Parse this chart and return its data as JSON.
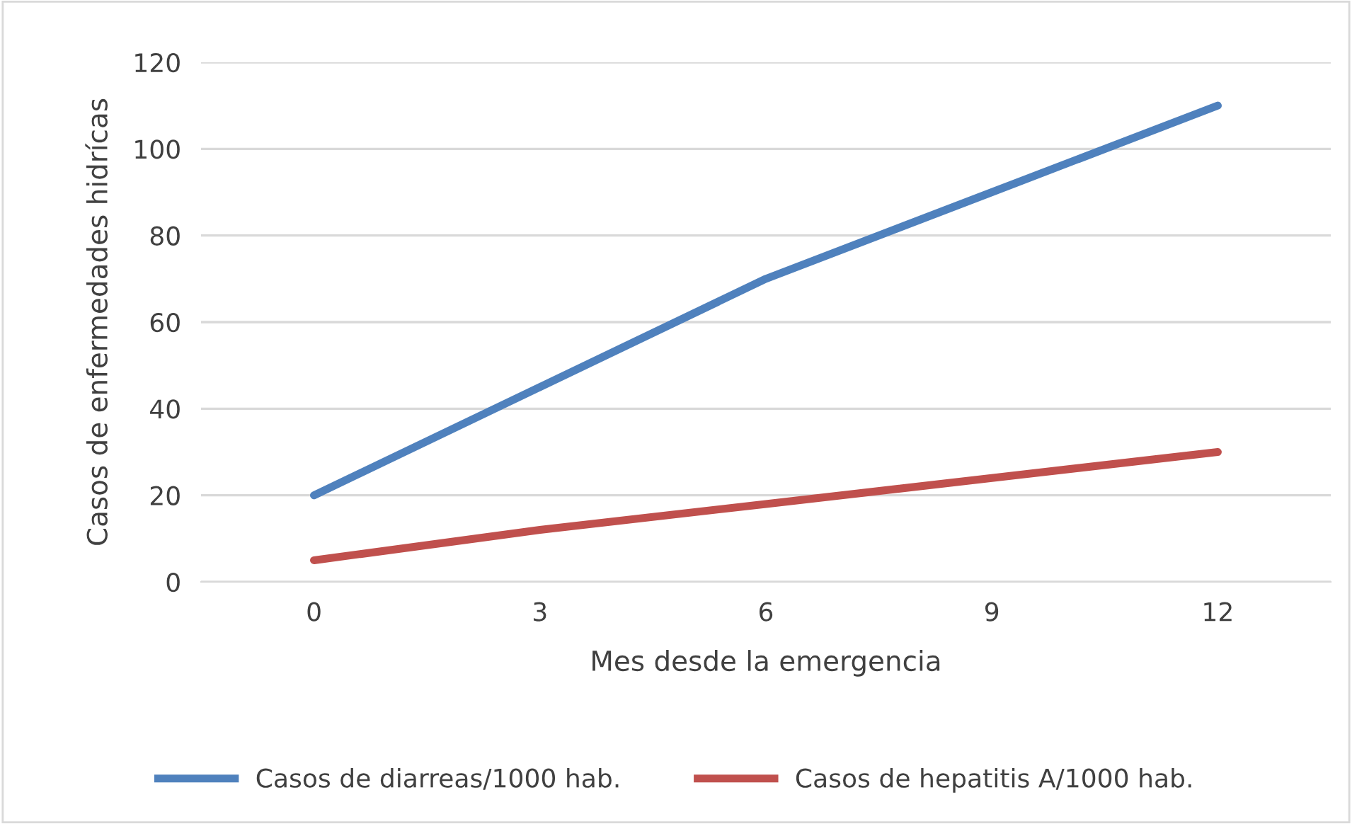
{
  "chart_data": {
    "type": "line",
    "xlabel": "Mes desde la emergencia",
    "ylabel": "Casos de enfermedades hidrícas",
    "categories": [
      "0",
      "3",
      "6",
      "9",
      "12"
    ],
    "series": [
      {
        "name": "Casos de diarreas/1000 hab.",
        "color": "#4f81bd",
        "values": [
          20,
          45,
          70,
          90,
          110
        ]
      },
      {
        "name": "Casos de hepatitis A/1000 hab.",
        "color": "#c0504d",
        "values": [
          5,
          12,
          18,
          24,
          30
        ]
      }
    ],
    "ylim": [
      0,
      120
    ],
    "yticks": [
      0,
      20,
      40,
      60,
      80,
      100,
      120
    ],
    "grid": "y",
    "legend": "bottom",
    "marker": "none",
    "line_style": "solid"
  }
}
